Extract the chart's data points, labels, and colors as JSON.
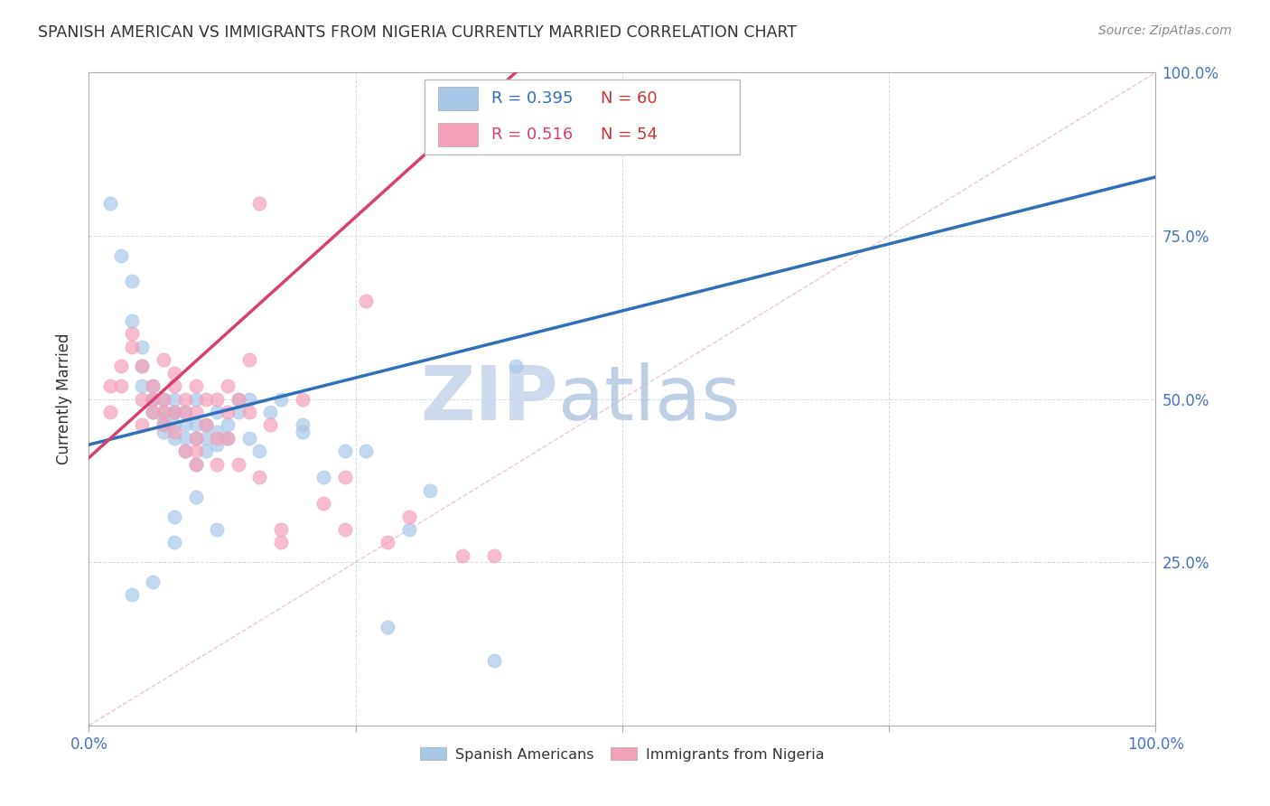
{
  "title": "SPANISH AMERICAN VS IMMIGRANTS FROM NIGERIA CURRENTLY MARRIED CORRELATION CHART",
  "source": "Source: ZipAtlas.com",
  "ylabel": "Currently Married",
  "blue_R": 0.395,
  "blue_N": 60,
  "pink_R": 0.516,
  "pink_N": 54,
  "blue_color": "#a8c8e8",
  "pink_color": "#f4a0b8",
  "blue_line_color": "#3070b8",
  "pink_line_color": "#d84070",
  "title_color": "#333333",
  "axis_label_color": "#4472c4",
  "watermark_color_zip": "#c0d0e8",
  "watermark_color_atlas": "#a0b8d8",
  "blue_points_x": [
    0.02,
    0.03,
    0.04,
    0.04,
    0.05,
    0.05,
    0.05,
    0.06,
    0.06,
    0.06,
    0.06,
    0.07,
    0.07,
    0.07,
    0.07,
    0.07,
    0.08,
    0.08,
    0.08,
    0.08,
    0.08,
    0.09,
    0.09,
    0.09,
    0.09,
    0.1,
    0.1,
    0.1,
    0.1,
    0.11,
    0.11,
    0.11,
    0.12,
    0.12,
    0.12,
    0.13,
    0.13,
    0.14,
    0.14,
    0.15,
    0.15,
    0.16,
    0.17,
    0.18,
    0.2,
    0.22,
    0.24,
    0.26,
    0.28,
    0.3,
    0.32,
    0.38,
    0.4,
    0.04,
    0.06,
    0.08,
    0.1,
    0.2,
    0.08,
    0.12
  ],
  "blue_points_y": [
    0.8,
    0.72,
    0.68,
    0.62,
    0.58,
    0.55,
    0.52,
    0.5,
    0.5,
    0.52,
    0.48,
    0.5,
    0.48,
    0.47,
    0.46,
    0.45,
    0.5,
    0.48,
    0.46,
    0.48,
    0.44,
    0.46,
    0.48,
    0.44,
    0.42,
    0.5,
    0.46,
    0.44,
    0.4,
    0.46,
    0.44,
    0.42,
    0.48,
    0.45,
    0.43,
    0.46,
    0.44,
    0.5,
    0.48,
    0.44,
    0.5,
    0.42,
    0.48,
    0.5,
    0.46,
    0.38,
    0.42,
    0.42,
    0.15,
    0.3,
    0.36,
    0.1,
    0.55,
    0.2,
    0.22,
    0.32,
    0.35,
    0.45,
    0.28,
    0.3
  ],
  "pink_points_x": [
    0.02,
    0.02,
    0.03,
    0.03,
    0.04,
    0.04,
    0.05,
    0.05,
    0.05,
    0.06,
    0.06,
    0.06,
    0.07,
    0.07,
    0.07,
    0.07,
    0.08,
    0.08,
    0.08,
    0.08,
    0.09,
    0.09,
    0.09,
    0.1,
    0.1,
    0.1,
    0.1,
    0.11,
    0.11,
    0.12,
    0.12,
    0.13,
    0.13,
    0.13,
    0.14,
    0.15,
    0.15,
    0.16,
    0.17,
    0.18,
    0.18,
    0.2,
    0.22,
    0.24,
    0.24,
    0.26,
    0.28,
    0.3,
    0.35,
    0.38,
    0.1,
    0.12,
    0.14,
    0.16
  ],
  "pink_points_y": [
    0.48,
    0.52,
    0.52,
    0.55,
    0.58,
    0.6,
    0.55,
    0.5,
    0.46,
    0.52,
    0.5,
    0.48,
    0.56,
    0.5,
    0.48,
    0.46,
    0.54,
    0.52,
    0.48,
    0.45,
    0.5,
    0.48,
    0.42,
    0.52,
    0.48,
    0.44,
    0.4,
    0.5,
    0.46,
    0.5,
    0.44,
    0.52,
    0.48,
    0.44,
    0.5,
    0.56,
    0.48,
    0.8,
    0.46,
    0.3,
    0.28,
    0.5,
    0.34,
    0.38,
    0.3,
    0.65,
    0.28,
    0.32,
    0.26,
    0.26,
    0.42,
    0.4,
    0.4,
    0.38
  ],
  "blue_line_x": [
    0.0,
    1.0
  ],
  "blue_line_y": [
    0.43,
    0.84
  ],
  "pink_line_x": [
    0.0,
    0.4
  ],
  "pink_line_y": [
    0.41,
    1.0
  ],
  "diag_line_x": [
    0.0,
    1.0
  ],
  "diag_line_y": [
    0.0,
    1.0
  ],
  "ylim": [
    0.0,
    1.0
  ],
  "xlim": [
    0.0,
    1.0
  ],
  "right_yticks": [
    0.0,
    0.25,
    0.5,
    0.75,
    1.0
  ],
  "right_ytick_labels": [
    "",
    "25.0%",
    "50.0%",
    "75.0%",
    "100.0%"
  ],
  "xticks": [
    0.0,
    0.25,
    0.5,
    0.75,
    1.0
  ],
  "xtick_labels_bottom": [
    "0.0%",
    "",
    "",
    "",
    "100.0%"
  ],
  "legend_blue_label": "Spanish Americans",
  "legend_pink_label": "Immigrants from Nigeria"
}
